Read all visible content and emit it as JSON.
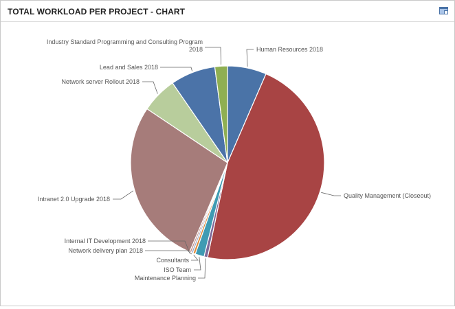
{
  "header": {
    "title": "TOTAL WORKLOAD PER PROJECT - CHART",
    "icon": "window-restore-icon"
  },
  "chart_data": {
    "type": "pie",
    "title": "",
    "slices": [
      {
        "label": "Human Resources 2018",
        "value": 6.5,
        "color": "#4a73a7"
      },
      {
        "label": "Quality Management (Closeout)",
        "value": 46.8,
        "color": "#a84444"
      },
      {
        "label": "Maintenance Planning",
        "value": 0.6,
        "color": "#7e6a9a"
      },
      {
        "label": "ISO Team",
        "value": 1.5,
        "color": "#3f9bb3"
      },
      {
        "label": "Consultants",
        "value": 0.4,
        "color": "#e08a3a"
      },
      {
        "label": "Network delivery plan 2018",
        "value": 0.3,
        "color": "#9aa8c9"
      },
      {
        "label": "Internal IT Development 2018",
        "value": 0.3,
        "color": "#c48c86"
      },
      {
        "label": "Intranet 2.0 Upgrade 2018",
        "value": 28.0,
        "color": "#a67c7a"
      },
      {
        "label": "Network server Rollout 2018",
        "value": 6.0,
        "color": "#b8cd9c"
      },
      {
        "label": "Lead and Sales 2018",
        "value": 7.5,
        "color": "#4b73a8"
      },
      {
        "label": "Industry Standard Programming and Consulting Program 2018",
        "value": 2.1,
        "color": "#8faf52"
      }
    ]
  }
}
